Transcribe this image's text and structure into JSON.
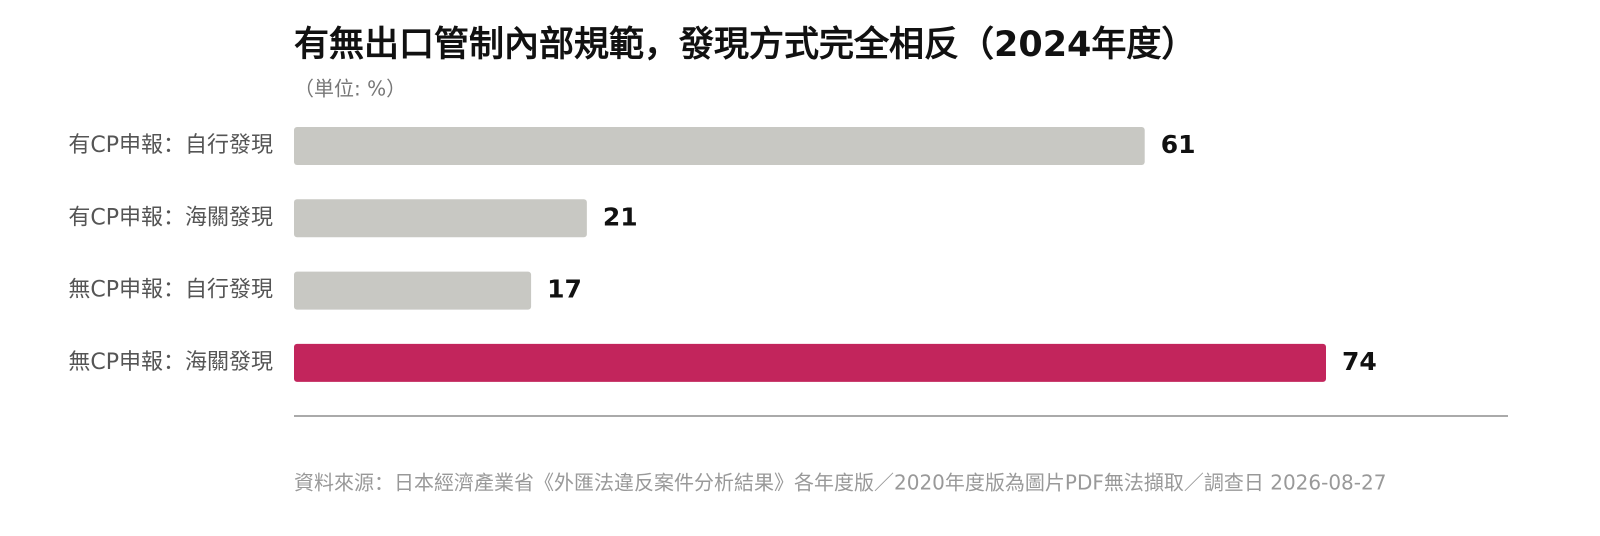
{
  "chart_data": {
    "type": "bar",
    "orientation": "horizontal",
    "title": "有無出口管制內部規範，發現方式完全相反（2024年度）",
    "subtitle": "（単位: %）",
    "categories": [
      "有CP申報：自行發現",
      "有CP申報：海關發現",
      "無CP申報：自行發現",
      "無CP申報：海關發現"
    ],
    "values": [
      61,
      21,
      17,
      74
    ],
    "colors": [
      "#c8c8c3",
      "#c8c8c3",
      "#c8c8c3",
      "#c2255c"
    ],
    "source": "資料來源：日本經濟產業省《外匯法違反案件分析結果》各年度版／2020年度版為圖片PDF無法擷取／調查日 2026-08-27"
  }
}
